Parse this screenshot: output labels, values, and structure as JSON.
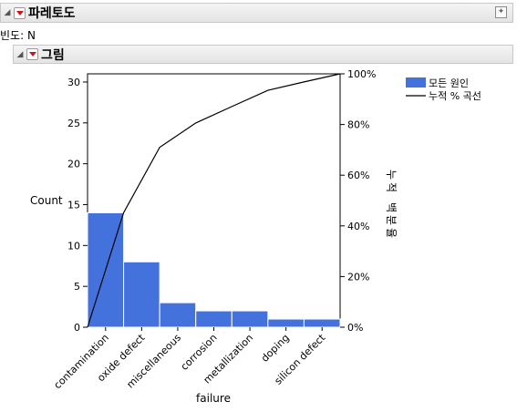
{
  "report": {
    "title": "파레토도"
  },
  "frequency_label": "빈도: N",
  "graph": {
    "title": "그림"
  },
  "legend": {
    "bar_label": "모든 원인",
    "line_label": "누적 % 곡선"
  },
  "colors": {
    "bar": "#4472dc",
    "line": "#000000"
  },
  "chart_data": {
    "type": "bar",
    "categories": [
      "contamination",
      "oxide defect",
      "miscellaneous",
      "corrosion",
      "metallization",
      "doping",
      "silicon defect"
    ],
    "values": [
      14,
      8,
      3,
      2,
      2,
      1,
      1
    ],
    "cumulative_percent": [
      0,
      45.2,
      71.0,
      80.6,
      87.1,
      93.5,
      96.8,
      100
    ],
    "xlabel": "failure",
    "ylabel": "Count",
    "y2label": "누적 백분율",
    "ylim": [
      0,
      31
    ],
    "yticks": [
      0,
      5,
      10,
      15,
      20,
      25,
      30
    ],
    "y2ticks": [
      "0%",
      "20%",
      "40%",
      "60%",
      "80%",
      "100%"
    ]
  }
}
